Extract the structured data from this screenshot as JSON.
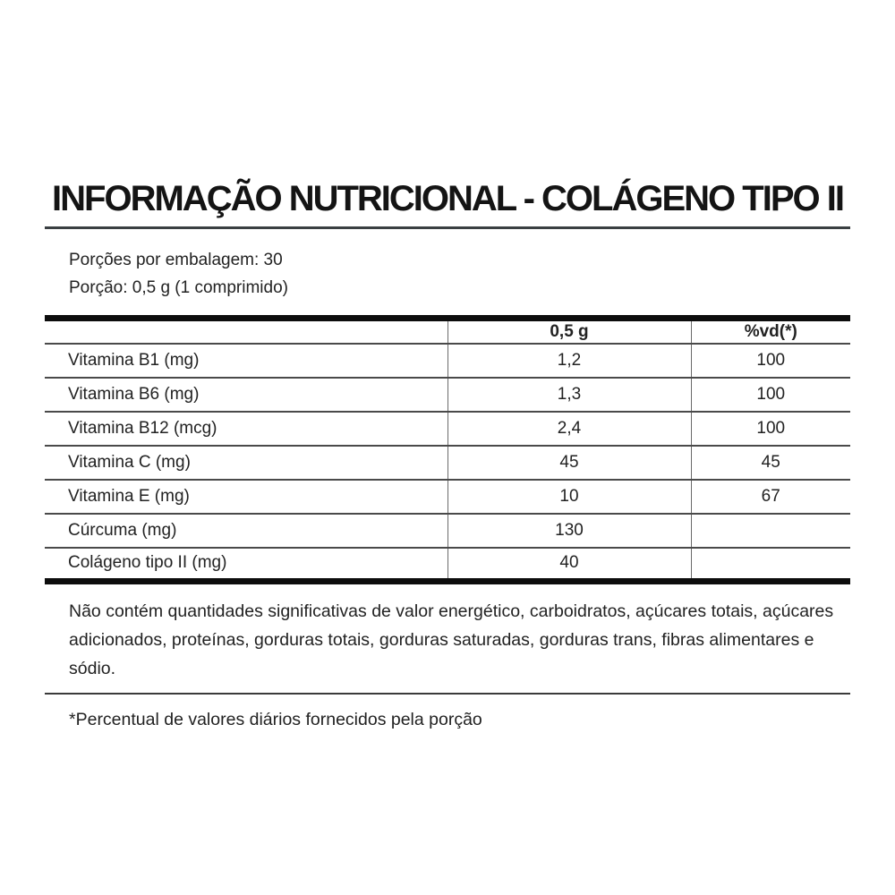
{
  "title": "INFORMAÇÃO NUTRICIONAL - COLÁGENO TIPO II",
  "serving_info": {
    "servings_per_package": "Porções por embalagem: 30",
    "serving_size": "Porção: 0,5 g (1 comprimido)"
  },
  "table": {
    "headers": [
      "",
      "0,5 g",
      "%vd(*)"
    ],
    "rows": [
      {
        "nutrient": "Vitamina B1 (mg)",
        "amount": "1,2",
        "dv": "100"
      },
      {
        "nutrient": "Vitamina B6 (mg)",
        "amount": "1,3",
        "dv": "100"
      },
      {
        "nutrient": "Vitamina B12 (mcg)",
        "amount": "2,4",
        "dv": "100"
      },
      {
        "nutrient": "Vitamina C (mg)",
        "amount": "45",
        "dv": "45"
      },
      {
        "nutrient": "Vitamina E (mg)",
        "amount": "10",
        "dv": "67"
      },
      {
        "nutrient": "Cúrcuma (mg)",
        "amount": "130",
        "dv": ""
      },
      {
        "nutrient": "Colágeno tipo II (mg)",
        "amount": "40",
        "dv": ""
      }
    ]
  },
  "disclaimer": "Não contém quantidades significativas de valor energético, carboidratos, açúcares totais, açúcares adicionados, proteínas, gorduras totais, gorduras saturadas, gorduras trans, fibras alimentares e sódio.",
  "footnote": "*Percentual de valores diários fornecidos pela porção",
  "colors": {
    "text": "#222222",
    "title_text": "#141414",
    "thick_rule": "#0d0d0d",
    "thin_rule": "#3a3f42",
    "row_rule": "#4a4a4a",
    "column_rule": "#6b6b6b",
    "background": "#ffffff"
  }
}
